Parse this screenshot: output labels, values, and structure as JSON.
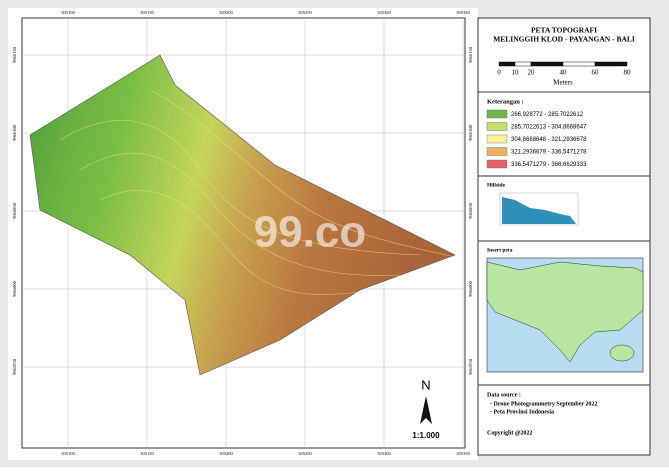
{
  "map": {
    "grid_x_labels": [
      "305100",
      "305150",
      "305200",
      "305250",
      "305300",
      "305350"
    ],
    "grid_y_labels": [
      "9066150",
      "9066100",
      "9066050",
      "9066000",
      "9065950"
    ],
    "watermark": "99.co",
    "north": "N",
    "scale": "1:1.000"
  },
  "panel": {
    "title": "PETA TOPOGRAFI",
    "subtitle": "MELINGGIH KLOD - PAYANGAN - BALI",
    "scale_bar": {
      "ticks": [
        0,
        10,
        20,
        40,
        60,
        80
      ],
      "unit": "Meters"
    },
    "legend_title": "Keterangan :",
    "legend": [
      {
        "label": "266,928772 - 285,7022612",
        "color": "#6db64a"
      },
      {
        "label": "285,7022613 - 304,8668647",
        "color": "#c7e06a"
      },
      {
        "label": "304,8668648 - 321,2936678",
        "color": "#fdf09a"
      },
      {
        "label": "321,2936679 - 336,5471278",
        "color": "#f0b060"
      },
      {
        "label": "336,5471279 - 366,6629333",
        "color": "#e46262"
      }
    ],
    "hillside_title": "Hillside",
    "inset_title": "Insert peta",
    "source_title": "Data source :",
    "sources": [
      "- Drone Photogrammetry September 2022",
      "- Peta Provinsi Indonesia"
    ],
    "copyright": "Copyright @2022"
  }
}
